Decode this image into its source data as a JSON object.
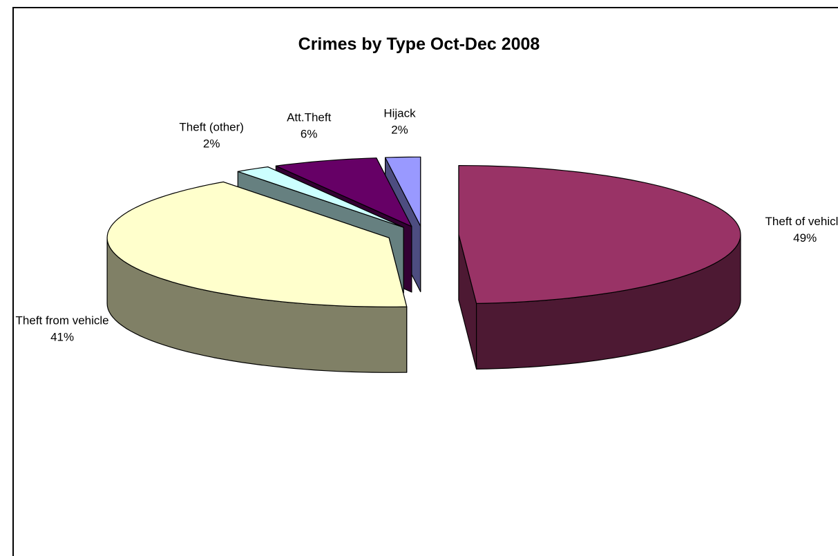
{
  "chart_data": {
    "type": "pie",
    "variant": "3d-exploded",
    "title": "Crimes by Type Oct-Dec 2008",
    "categories": [
      "Theft of vehicle",
      "Theft from vehicle",
      "Theft (other)",
      "Att.Theft",
      "Hijack"
    ],
    "values": [
      49,
      41,
      2,
      6,
      2
    ],
    "percent_labels": [
      "49%",
      "41%",
      "2%",
      "6%",
      "2%"
    ],
    "colors": {
      "Theft of vehicle": {
        "top": "#993366",
        "side": "#4d1933"
      },
      "Theft from vehicle": {
        "top": "#ffffcc",
        "side": "#808066"
      },
      "Theft (other)": {
        "top": "#ccffff",
        "side": "#668080"
      },
      "Att.Theft": {
        "top": "#660066",
        "side": "#330033"
      },
      "Hijack": {
        "top": "#9999ff",
        "side": "#4d4d80"
      }
    },
    "legend": "none"
  }
}
